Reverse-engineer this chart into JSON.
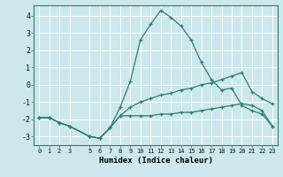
{
  "xlabel": "Humidex (Indice chaleur)",
  "bg_color": "#cce8ec",
  "grid_color": "#ffffff",
  "line_color": "#2e7d6e",
  "xlim": [
    -0.5,
    23.5
  ],
  "ylim": [
    -3.5,
    4.6
  ],
  "xticks": [
    0,
    1,
    2,
    3,
    5,
    6,
    7,
    8,
    9,
    10,
    11,
    12,
    13,
    14,
    15,
    16,
    17,
    18,
    19,
    20,
    21,
    22,
    23
  ],
  "yticks": [
    -3,
    -2,
    -1,
    0,
    1,
    2,
    3,
    4
  ],
  "line1_x": [
    0,
    1,
    2,
    3,
    5,
    6,
    7,
    8,
    9,
    10,
    11,
    12,
    13,
    14,
    15,
    16,
    17,
    18,
    19,
    20,
    21,
    22,
    23
  ],
  "line1_y": [
    -1.9,
    -1.9,
    -2.2,
    -2.4,
    -3.0,
    -3.1,
    -2.5,
    -1.3,
    0.2,
    2.6,
    3.5,
    4.3,
    3.9,
    3.4,
    2.6,
    1.3,
    0.3,
    -0.3,
    -0.2,
    -1.2,
    -1.5,
    -1.7,
    -2.4
  ],
  "line2_x": [
    0,
    1,
    2,
    3,
    5,
    6,
    7,
    8,
    9,
    10,
    11,
    12,
    13,
    14,
    15,
    16,
    17,
    18,
    19,
    20,
    21,
    22,
    23
  ],
  "line2_y": [
    -1.9,
    -1.9,
    -2.2,
    -2.4,
    -3.0,
    -3.1,
    -2.5,
    -1.8,
    -1.3,
    -1.0,
    -0.8,
    -0.6,
    -0.5,
    -0.3,
    -0.2,
    0.0,
    0.1,
    0.3,
    0.5,
    0.7,
    -0.4,
    -0.8,
    -1.1
  ],
  "line3_x": [
    0,
    1,
    2,
    3,
    5,
    6,
    7,
    8,
    9,
    10,
    11,
    12,
    13,
    14,
    15,
    16,
    17,
    18,
    19,
    20,
    21,
    22,
    23
  ],
  "line3_y": [
    -1.9,
    -1.9,
    -2.2,
    -2.4,
    -3.0,
    -3.1,
    -2.5,
    -1.8,
    -1.8,
    -1.8,
    -1.8,
    -1.7,
    -1.7,
    -1.6,
    -1.6,
    -1.5,
    -1.4,
    -1.3,
    -1.2,
    -1.1,
    -1.2,
    -1.5,
    -2.4
  ]
}
